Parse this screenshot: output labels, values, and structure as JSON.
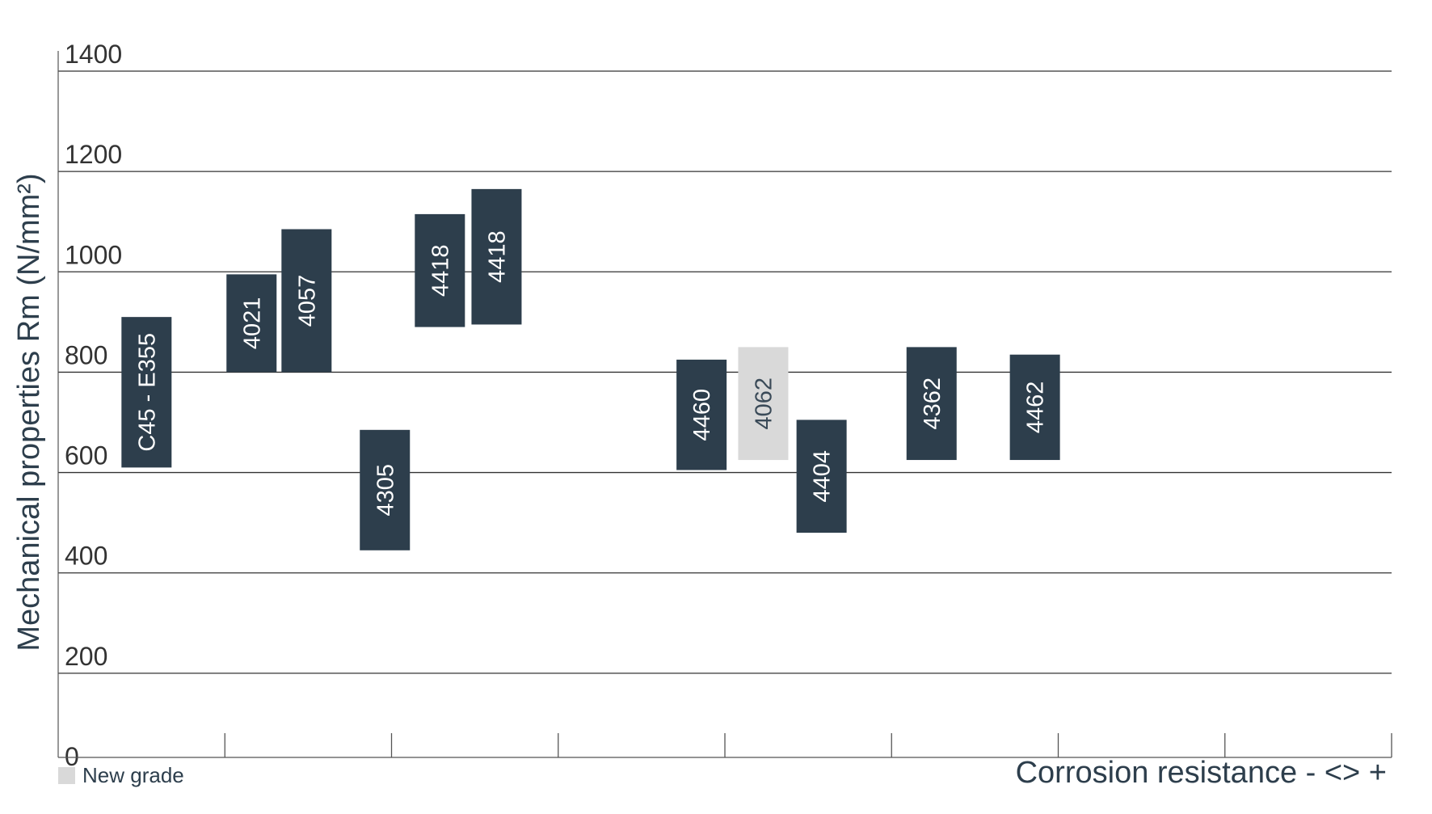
{
  "chart_data": {
    "type": "bar",
    "subtype": "floating-range",
    "ylabel": "Mechanical properties Rm (N/mm²)",
    "xlabel": "Corrosion resistance - <> +",
    "ylim": [
      0,
      1400
    ],
    "yticks": [
      "0",
      "200",
      "400",
      "600",
      "800",
      "1000",
      "1200",
      "1400"
    ],
    "x_ticks": 8,
    "grid": true,
    "legend": {
      "label": "New grade",
      "color": "#d9d9d9",
      "placement": "bottom-left"
    },
    "colors": {
      "standard": "#2d3e4c",
      "new": "#d9d9d9",
      "grid": "#333333",
      "text": "#2d3e4c"
    },
    "bars": [
      {
        "label": "C45 - E355",
        "x": 0.53,
        "low": 610,
        "high": 910,
        "new": false
      },
      {
        "label": "4021",
        "x": 1.16,
        "low": 800,
        "high": 995,
        "new": false
      },
      {
        "label": "4057",
        "x": 1.49,
        "low": 800,
        "high": 1085,
        "new": false
      },
      {
        "label": "4305",
        "x": 1.96,
        "low": 445,
        "high": 685,
        "new": false
      },
      {
        "label": "4418",
        "x": 2.29,
        "low": 890,
        "high": 1115,
        "new": false
      },
      {
        "label": "4418",
        "x": 2.63,
        "low": 895,
        "high": 1165,
        "new": false
      },
      {
        "label": "4460",
        "x": 3.86,
        "low": 605,
        "high": 825,
        "new": false
      },
      {
        "label": "4062",
        "x": 4.23,
        "low": 625,
        "high": 850,
        "new": true
      },
      {
        "label": "4404",
        "x": 4.58,
        "low": 480,
        "high": 705,
        "new": false
      },
      {
        "label": "4362",
        "x": 5.24,
        "low": 625,
        "high": 850,
        "new": false
      },
      {
        "label": "4462",
        "x": 5.86,
        "low": 625,
        "high": 835,
        "new": false
      }
    ]
  }
}
